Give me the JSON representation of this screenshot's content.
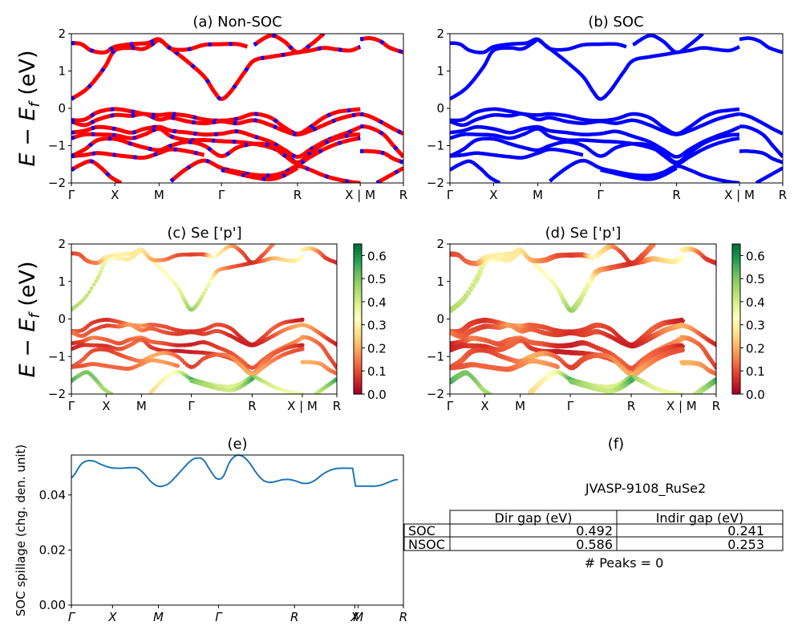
{
  "chart_data": [
    {
      "id": "a",
      "type": "line",
      "title": "(a) Non-SOC",
      "ylabel": "E − E_f (eV)",
      "ylim": [
        -2,
        2
      ],
      "yticks": [
        "−2",
        "−1",
        "0",
        "1",
        "2"
      ],
      "ytick_values": [
        -2,
        -1,
        0,
        1,
        2
      ],
      "xticks": [
        "Γ",
        "X",
        "M",
        "Γ",
        "R",
        "X | M",
        "R"
      ],
      "xtick_positions": [
        0,
        0.131,
        0.264,
        0.452,
        0.681,
        0.87,
        1.0
      ],
      "style": "red line with blue dashes (spin up/down overlay)",
      "colors": {
        "primary": "#ff0000",
        "secondary": "#0000ff"
      },
      "series_ref": "bands"
    },
    {
      "id": "b",
      "type": "line",
      "title": "(b) SOC",
      "ylim": [
        -2,
        2
      ],
      "yticks": [
        "−2",
        "−1",
        "0",
        "1",
        "2"
      ],
      "ytick_values": [
        -2,
        -1,
        0,
        1,
        2
      ],
      "xticks": [
        "Γ",
        "X",
        "M",
        "Γ",
        "R",
        "X | M",
        "R"
      ],
      "xtick_positions": [
        0,
        0.131,
        0.264,
        0.452,
        0.681,
        0.87,
        1.0
      ],
      "colors": {
        "primary": "#0000ff"
      },
      "series_ref": "bands"
    },
    {
      "id": "c",
      "type": "scatter",
      "title": "(c)  Se ['p']",
      "ylabel": "E − E_f (eV)",
      "ylim": [
        -2,
        2
      ],
      "yticks": [
        "−2",
        "−1",
        "0",
        "1",
        "2"
      ],
      "ytick_values": [
        -2,
        -1,
        0,
        1,
        2
      ],
      "xticks": [
        "Γ",
        "X",
        "M",
        "Γ",
        "R",
        "X | M",
        "R"
      ],
      "xtick_positions": [
        0,
        0.131,
        0.264,
        0.452,
        0.681,
        0.87,
        1.0
      ],
      "colorbar": {
        "cmap": "RdYlGn",
        "range": [
          0.0,
          0.65
        ],
        "ticks": [
          "0.0",
          "0.1",
          "0.2",
          "0.3",
          "0.4",
          "0.5",
          "0.6"
        ],
        "tick_values": [
          0,
          0.1,
          0.2,
          0.3,
          0.4,
          0.5,
          0.6
        ]
      },
      "series_ref": "bands"
    },
    {
      "id": "d",
      "type": "scatter",
      "title": "(d) Se ['p']",
      "ylim": [
        -2,
        2
      ],
      "yticks": [
        "−2",
        "−1",
        "0",
        "1",
        "2"
      ],
      "ytick_values": [
        -2,
        -1,
        0,
        1,
        2
      ],
      "xticks": [
        "Γ",
        "X",
        "M",
        "Γ",
        "R",
        "X | M",
        "R"
      ],
      "xtick_positions": [
        0,
        0.131,
        0.264,
        0.452,
        0.681,
        0.87,
        1.0
      ],
      "colorbar": {
        "cmap": "RdYlGn",
        "range": [
          0.0,
          0.65
        ],
        "ticks": [
          "0.0",
          "0.1",
          "0.2",
          "0.3",
          "0.4",
          "0.5",
          "0.6"
        ],
        "tick_values": [
          0,
          0.1,
          0.2,
          0.3,
          0.4,
          0.5,
          0.6
        ]
      },
      "series_ref": "bands"
    },
    {
      "id": "e",
      "type": "line",
      "title": "(e)",
      "ylabel": "SOC spillage (chg. den. unit)",
      "ylim": [
        0.0,
        0.0545
      ],
      "yticks": [
        "0.00",
        "0.02",
        "0.04"
      ],
      "ytick_values": [
        0.0,
        0.02,
        0.04
      ],
      "xticks": [
        "Γ",
        "X",
        "M",
        "Γ",
        "R",
        "X",
        "M",
        "R"
      ],
      "xtick_positions": [
        0,
        0.124,
        0.262,
        0.443,
        0.672,
        0.854,
        0.864,
        1.0
      ],
      "color": "#1f77b4",
      "x": [
        0,
        0.01,
        0.03,
        0.05,
        0.07,
        0.09,
        0.12,
        0.15,
        0.18,
        0.2,
        0.22,
        0.24,
        0.26,
        0.28,
        0.3,
        0.33,
        0.36,
        0.38,
        0.4,
        0.42,
        0.44,
        0.46,
        0.48,
        0.5,
        0.52,
        0.54,
        0.56,
        0.58,
        0.6,
        0.62,
        0.64,
        0.66,
        0.68,
        0.7,
        0.72,
        0.74,
        0.76,
        0.78,
        0.8,
        0.82,
        0.84,
        0.853,
        0.862,
        0.88,
        0.9,
        0.92,
        0.94,
        0.96,
        0.98,
        0.99
      ],
      "y": [
        0.0462,
        0.0475,
        0.0512,
        0.0524,
        0.0522,
        0.0511,
        0.0499,
        0.0497,
        0.0499,
        0.0497,
        0.0478,
        0.045,
        0.0433,
        0.0433,
        0.0446,
        0.0484,
        0.0522,
        0.0534,
        0.0528,
        0.0492,
        0.046,
        0.0466,
        0.0519,
        0.0543,
        0.054,
        0.0517,
        0.0482,
        0.0455,
        0.0446,
        0.0449,
        0.0455,
        0.0456,
        0.0451,
        0.0443,
        0.0443,
        0.0454,
        0.0473,
        0.0487,
        0.0495,
        0.0497,
        0.0497,
        0.0497,
        0.0432,
        0.0432,
        0.0432,
        0.0432,
        0.0436,
        0.0445,
        0.0454,
        0.0456
      ]
    },
    {
      "id": "f",
      "type": "table",
      "title": "(f)",
      "subtitle": "JVASP-9108_RuSe2",
      "columns": [
        "Dir gap (eV)",
        "Indir gap (eV)"
      ],
      "rows": [
        {
          "label": "SOC",
          "values": [
            "0.492",
            "0.241"
          ]
        },
        {
          "label": "NSOC",
          "values": [
            "0.586",
            "0.253"
          ]
        }
      ],
      "footer": "# Peaks = 0"
    }
  ],
  "bands": [
    {
      "x": [
        0,
        0.05,
        0.1,
        0.131,
        0.18,
        0.22,
        0.264
      ],
      "y": [
        0.25,
        0.55,
        1.1,
        1.55,
        1.62,
        1.6,
        1.85
      ],
      "w": [
        0.45,
        0.42,
        0.4,
        0.35,
        0.3,
        0.28,
        0.28
      ]
    },
    {
      "x": [
        0.264,
        0.3,
        0.35,
        0.4,
        0.43,
        0.452,
        0.48,
        0.52,
        0.55,
        0.6,
        0.65,
        0.681
      ],
      "y": [
        1.85,
        1.6,
        1.25,
        0.85,
        0.45,
        0.25,
        0.45,
        0.95,
        1.28,
        1.38,
        1.45,
        1.5
      ],
      "w": [
        0.28,
        0.3,
        0.32,
        0.35,
        0.42,
        0.48,
        0.42,
        0.35,
        0.2,
        0.12,
        0.08,
        0.06
      ]
    },
    {
      "x": [
        0,
        0.03,
        0.06,
        0.1,
        0.131,
        0.18,
        0.23,
        0.264,
        0.3,
        0.35,
        0.4,
        0.452,
        0.5,
        0.53
      ],
      "y": [
        1.75,
        1.72,
        1.55,
        1.5,
        1.65,
        1.72,
        1.75,
        1.85,
        1.6,
        1.58,
        1.7,
        1.72,
        1.72,
        1.65
      ],
      "w": [
        0.08,
        0.1,
        0.12,
        0.15,
        0.28,
        0.3,
        0.28,
        0.28,
        0.2,
        0.15,
        0.1,
        0.08,
        0.1,
        0.3
      ]
    },
    {
      "x": [
        0.681,
        0.72,
        0.76,
        0.8,
        0.84,
        0.87
      ],
      "y": [
        1.5,
        1.55,
        1.62,
        1.58,
        1.55,
        1.65
      ],
      "w": [
        0.06,
        0.12,
        0.2,
        0.25,
        0.28,
        0.32
      ]
    },
    {
      "x": [
        0.87,
        0.9,
        0.93,
        0.96,
        1.0
      ],
      "y": [
        1.85,
        1.88,
        1.8,
        1.62,
        1.5
      ],
      "w": [
        0.3,
        0.25,
        0.15,
        0.08,
        0.06
      ]
    },
    {
      "x": [
        0.55,
        0.6,
        0.64,
        0.681,
        0.72,
        0.76
      ],
      "y": [
        1.7,
        1.95,
        1.8,
        1.5,
        1.7,
        2.0
      ],
      "w": [
        0.3,
        0.2,
        0.1,
        0.06,
        0.1,
        0.15
      ]
    },
    {
      "x": [
        0,
        0.04,
        0.08,
        0.131,
        0.18,
        0.22,
        0.264,
        0.3,
        0.35,
        0.4,
        0.452,
        0.5,
        0.55,
        0.6,
        0.64,
        0.681,
        0.72,
        0.76,
        0.8,
        0.84,
        0.87
      ],
      "y": [
        -0.32,
        -0.3,
        -0.1,
        -0.02,
        -0.08,
        -0.15,
        -0.18,
        -0.15,
        -0.2,
        -0.3,
        -0.33,
        -0.28,
        -0.15,
        -0.25,
        -0.5,
        -0.68,
        -0.5,
        -0.25,
        -0.1,
        -0.05,
        -0.02
      ],
      "w": [
        0.12,
        0.1,
        0.08,
        0.06,
        0.1,
        0.15,
        0.18,
        0.12,
        0.1,
        0.08,
        0.07,
        0.08,
        0.1,
        0.08,
        0.06,
        0.05,
        0.08,
        0.12,
        0.1,
        0.06,
        0.04
      ]
    },
    {
      "x": [
        0,
        0.04,
        0.08,
        0.131,
        0.18,
        0.22,
        0.264,
        0.3,
        0.35,
        0.4,
        0.452,
        0.5,
        0.55,
        0.6,
        0.64,
        0.681,
        0.72,
        0.76,
        0.8,
        0.84,
        0.87
      ],
      "y": [
        -0.35,
        -0.45,
        -0.3,
        -0.18,
        -0.2,
        -0.15,
        -0.3,
        -0.25,
        -0.35,
        -0.4,
        -0.35,
        -0.4,
        -0.32,
        -0.45,
        -0.6,
        -0.7,
        -0.6,
        -0.45,
        -0.3,
        -0.2,
        -0.15
      ],
      "w": [
        0.15,
        0.12,
        0.1,
        0.08,
        0.12,
        0.18,
        0.15,
        0.12,
        0.1,
        0.08,
        0.06,
        0.08,
        0.1,
        0.06,
        0.05,
        0.04,
        0.06,
        0.1,
        0.15,
        0.18,
        0.2
      ]
    },
    {
      "x": [
        0.87,
        0.9,
        0.94,
        0.97,
        1.0
      ],
      "y": [
        -0.15,
        -0.22,
        -0.4,
        -0.55,
        -0.68
      ],
      "w": [
        0.2,
        0.18,
        0.12,
        0.08,
        0.05
      ]
    },
    {
      "x": [
        0,
        0.04,
        0.08,
        0.131,
        0.18,
        0.22,
        0.264,
        0.3,
        0.35,
        0.4,
        0.452,
        0.5,
        0.55,
        0.6,
        0.64,
        0.681,
        0.72,
        0.76,
        0.8,
        0.84,
        0.87
      ],
      "y": [
        -0.65,
        -0.6,
        -0.5,
        -0.55,
        -0.65,
        -0.55,
        -0.5,
        -0.6,
        -0.65,
        -0.7,
        -0.68,
        -0.62,
        -0.75,
        -0.9,
        -1.1,
        -1.3,
        -1.1,
        -0.9,
        -0.75,
        -0.62,
        -0.5
      ],
      "w": [
        0.05,
        0.08,
        0.15,
        0.12,
        0.1,
        0.12,
        0.15,
        0.12,
        0.1,
        0.06,
        0.04,
        0.06,
        0.08,
        0.1,
        0.12,
        0.1,
        0.12,
        0.12,
        0.15,
        0.15,
        0.18
      ]
    },
    {
      "x": [
        0.87,
        0.9,
        0.94,
        0.97,
        1.0
      ],
      "y": [
        -0.48,
        -0.52,
        -0.7,
        -1.0,
        -1.3
      ],
      "w": [
        0.18,
        0.15,
        0.12,
        0.1,
        0.08
      ]
    },
    {
      "x": [
        0,
        0.04,
        0.08,
        0.131,
        0.18,
        0.22,
        0.264,
        0.3,
        0.35,
        0.4,
        0.452,
        0.5,
        0.55,
        0.6,
        0.64,
        0.681,
        0.72,
        0.76,
        0.8,
        0.84,
        0.87
      ],
      "y": [
        -0.8,
        -0.7,
        -0.7,
        -0.72,
        -0.8,
        -0.7,
        -0.55,
        -0.75,
        -0.85,
        -0.85,
        -0.88,
        -0.9,
        -0.95,
        -1.05,
        -1.2,
        -1.45,
        -1.2,
        -0.95,
        -0.8,
        -0.72,
        -0.7
      ],
      "w": [
        0.05,
        0.06,
        0.08,
        0.06,
        0.1,
        0.12,
        0.12,
        0.08,
        0.06,
        0.04,
        0.04,
        0.06,
        0.08,
        0.1,
        0.12,
        0.15,
        0.15,
        0.12,
        0.1,
        0.08,
        0.05
      ]
    },
    {
      "x": [
        0,
        0.04,
        0.08,
        0.131,
        0.18,
        0.22,
        0.264,
        0.3,
        0.35,
        0.4,
        0.452,
        0.5,
        0.55,
        0.6,
        0.64,
        0.681,
        0.72,
        0.76,
        0.8,
        0.84,
        0.87
      ],
      "y": [
        -1.28,
        -1.1,
        -0.85,
        -0.82,
        -0.95,
        -1.05,
        -1.12,
        -1.0,
        -0.9,
        -1.0,
        -1.28,
        -1.05,
        -0.95,
        -1.0,
        -1.25,
        -1.48,
        -1.3,
        -1.1,
        -0.95,
        -0.85,
        -0.8
      ],
      "w": [
        0.1,
        0.12,
        0.1,
        0.08,
        0.1,
        0.12,
        0.15,
        0.2,
        0.18,
        0.12,
        0.08,
        0.1,
        0.12,
        0.15,
        0.18,
        0.2,
        0.18,
        0.15,
        0.12,
        0.1,
        0.1
      ]
    },
    {
      "x": [
        0,
        0.04,
        0.08,
        0.131,
        0.18,
        0.22,
        0.264,
        0.3,
        0.35,
        0.4
      ],
      "y": [
        -1.28,
        -1.25,
        -1.2,
        -1.25,
        -1.3,
        -1.32,
        -1.2,
        -1.1,
        -1.15,
        -1.25
      ],
      "w": [
        0.1,
        0.1,
        0.12,
        0.12,
        0.12,
        0.12,
        0.15,
        0.18,
        0.18,
        0.15
      ]
    },
    {
      "x": [
        0.87,
        0.9,
        0.94,
        0.97,
        1.0
      ],
      "y": [
        -1.15,
        -1.15,
        -1.2,
        -1.35,
        -1.45
      ],
      "w": [
        0.2,
        0.2,
        0.18,
        0.15,
        0.12
      ]
    },
    {
      "x": [
        0,
        0.03,
        0.06,
        0.09,
        0.12,
        0.15
      ],
      "y": [
        -1.65,
        -1.5,
        -1.42,
        -1.6,
        -1.85,
        -2.0
      ],
      "w": [
        0.55,
        0.5,
        0.5,
        0.5,
        0.45,
        0.45
      ]
    },
    {
      "x": [
        0.3,
        0.35,
        0.4,
        0.452,
        0.5,
        0.55,
        0.6,
        0.64,
        0.681,
        0.72,
        0.76,
        0.8,
        0.84,
        0.87
      ],
      "y": [
        -1.95,
        -1.6,
        -1.4,
        -1.6,
        -1.7,
        -1.78,
        -1.8,
        -1.72,
        -1.55,
        -1.65,
        -1.8,
        -1.9,
        -1.97,
        -2.0
      ],
      "w": [
        0.25,
        0.3,
        0.35,
        0.55,
        0.45,
        0.4,
        0.38,
        0.4,
        0.5,
        0.42,
        0.38,
        0.35,
        0.35,
        0.35
      ]
    },
    {
      "x": [
        0.452,
        0.5,
        0.55,
        0.6,
        0.64,
        0.681
      ],
      "y": [
        -1.65,
        -1.75,
        -1.85,
        -1.9,
        -1.8,
        -1.6
      ],
      "w": [
        0.5,
        0.45,
        0.42,
        0.4,
        0.45,
        0.55
      ]
    },
    {
      "x": [
        0.92,
        0.95,
        0.98,
        1.0
      ],
      "y": [
        -2.0,
        -1.85,
        -1.7,
        -1.6
      ],
      "w": [
        0.4,
        0.45,
        0.5,
        0.55
      ]
    }
  ]
}
